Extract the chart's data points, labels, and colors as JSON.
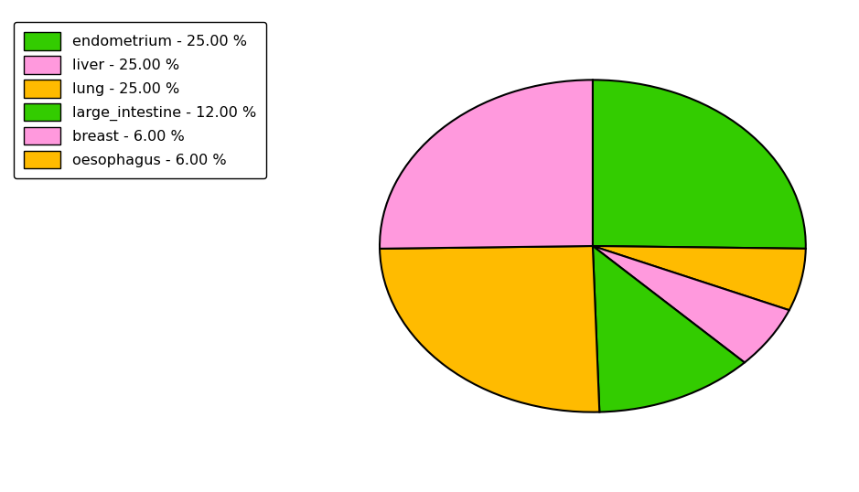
{
  "labels": [
    "endometrium",
    "oesophagus",
    "breast",
    "large_intestine",
    "lung",
    "liver"
  ],
  "values": [
    25.0,
    6.0,
    6.0,
    12.0,
    25.0,
    25.0
  ],
  "colors": [
    "#33cc00",
    "#ffbb00",
    "#ff99dd",
    "#33cc00",
    "#ffbb00",
    "#ff99dd"
  ],
  "legend_labels": [
    "endometrium - 25.00 %",
    "liver - 25.00 %",
    "lung - 25.00 %",
    "large_intestine - 12.00 %",
    "breast - 6.00 %",
    "oesophagus - 6.00 %"
  ],
  "legend_colors": [
    "#33cc00",
    "#ff99dd",
    "#ffbb00",
    "#33cc00",
    "#ff99dd",
    "#ffbb00"
  ],
  "startangle": 90,
  "background_color": "#ffffff",
  "figsize": [
    9.39,
    5.38
  ],
  "dpi": 100
}
